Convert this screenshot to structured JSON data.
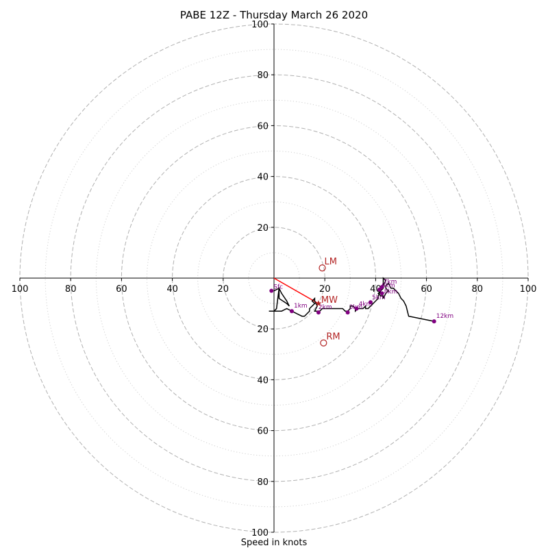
{
  "chart_data": {
    "type": "hodograph",
    "title": "PABE 12Z - Thursday March 26 2020",
    "xlabel": "Speed in knots",
    "range": [
      -100,
      100
    ],
    "ring_major": [
      20,
      40,
      60,
      80,
      100
    ],
    "ring_minor": [
      10,
      30,
      50,
      70,
      90
    ],
    "ticks": [
      20,
      40,
      60,
      80,
      100
    ],
    "ticks_left": [
      "100",
      "80",
      "60",
      "40",
      "20"
    ],
    "ticks_right": [
      "20",
      "40",
      "60",
      "80",
      "100"
    ],
    "ticks_up": [
      "20",
      "40",
      "60",
      "80",
      "100"
    ],
    "ticks_down": [
      "20",
      "40",
      "60",
      "80",
      "100"
    ],
    "hodograph": [
      [
        0,
        -5
      ],
      [
        2,
        -4
      ],
      [
        2,
        -8
      ],
      [
        5,
        -10
      ],
      [
        6,
        -11
      ],
      [
        5,
        -9
      ],
      [
        3,
        -6
      ],
      [
        2,
        -4
      ],
      [
        1,
        -12
      ],
      [
        0,
        -13
      ],
      [
        -2,
        -13
      ],
      [
        1,
        -13
      ],
      [
        3,
        -13
      ],
      [
        5,
        -12
      ],
      [
        7,
        -13
      ],
      [
        9,
        -14
      ],
      [
        11,
        -15
      ],
      [
        12,
        -15
      ],
      [
        13,
        -14
      ],
      [
        14,
        -13
      ],
      [
        14,
        -12
      ],
      [
        15,
        -11
      ],
      [
        16,
        -10
      ],
      [
        15,
        -9
      ],
      [
        16,
        -8
      ],
      [
        16,
        -9
      ],
      [
        17,
        -11
      ],
      [
        16,
        -13
      ],
      [
        17,
        -13
      ],
      [
        18,
        -13
      ],
      [
        19,
        -12
      ],
      [
        21,
        -12
      ],
      [
        23,
        -12
      ],
      [
        25,
        -12
      ],
      [
        27,
        -12
      ],
      [
        28,
        -13
      ],
      [
        29,
        -13
      ],
      [
        30,
        -12
      ],
      [
        30,
        -11
      ],
      [
        31,
        -11
      ],
      [
        32,
        -12
      ],
      [
        32,
        -13
      ],
      [
        33,
        -12
      ],
      [
        34,
        -12
      ],
      [
        35,
        -12
      ],
      [
        36,
        -11
      ],
      [
        36,
        -12
      ],
      [
        37,
        -12
      ],
      [
        38,
        -11
      ],
      [
        39,
        -10
      ],
      [
        40,
        -9
      ],
      [
        41,
        -8
      ],
      [
        41,
        -7
      ],
      [
        42,
        -5
      ],
      [
        42,
        -4
      ],
      [
        43,
        -3
      ],
      [
        44,
        -1
      ],
      [
        43,
        0
      ],
      [
        43,
        -2
      ],
      [
        43,
        -4
      ],
      [
        42,
        -5
      ],
      [
        41,
        -6
      ],
      [
        42,
        -7
      ],
      [
        43,
        -7
      ],
      [
        43,
        -8
      ],
      [
        44,
        -6
      ],
      [
        45,
        -5
      ],
      [
        44,
        -4
      ],
      [
        44,
        -3
      ],
      [
        45,
        -2
      ],
      [
        46,
        -4
      ],
      [
        47,
        -4
      ],
      [
        48,
        -5
      ],
      [
        49,
        -6
      ],
      [
        50,
        -8
      ],
      [
        51,
        -9
      ],
      [
        52,
        -11
      ],
      [
        53,
        -15
      ],
      [
        63,
        -17
      ]
    ],
    "height_points": [
      {
        "label": "Sfc",
        "u": -1,
        "v": -5,
        "dx": 3,
        "dy": -3
      },
      {
        "label": "1km",
        "u": 7,
        "v": -13,
        "dx": 3,
        "dy": -5
      },
      {
        "label": "2km",
        "u": 17.5,
        "v": -13.5,
        "dx": 0,
        "dy": -5
      },
      {
        "label": "3km",
        "u": 29,
        "v": -13.5,
        "dx": 2,
        "dy": -5
      },
      {
        "label": "4km",
        "u": 32.5,
        "v": -12,
        "dx": 3,
        "dy": -4
      },
      {
        "label": "5km",
        "u": 38,
        "v": -9.5,
        "dx": 2,
        "dy": -4
      },
      {
        "label": "6km",
        "u": 41.5,
        "v": -4.5,
        "dx": 3,
        "dy": -3
      },
      {
        "label": "7km",
        "u": 42.5,
        "v": -3.5,
        "dx": 2,
        "dy": -5
      },
      {
        "label": "8km",
        "u": 42.5,
        "v": -6,
        "dx": 3,
        "dy": 0
      },
      {
        "label": "12km",
        "u": 63,
        "v": -17,
        "dx": 3,
        "dy": -5
      }
    ],
    "storm_motions": [
      {
        "label": "LM",
        "u": 19,
        "v": 4,
        "marker": "circle",
        "dx": 3,
        "dy": -5
      },
      {
        "label": "RM",
        "u": 19.5,
        "v": -25.5,
        "marker": "circle",
        "dx": 4,
        "dy": -5
      },
      {
        "label": "MW",
        "u": 17.5,
        "v": -10,
        "marker": "star",
        "dx": 4,
        "dy": -1
      }
    ],
    "shear_vector": {
      "from": [
        0,
        0
      ],
      "to": [
        17.5,
        -10
      ]
    },
    "colors": {
      "hodograph": "#000000",
      "height_points": "#800080",
      "storm_motion": "#b22222",
      "shear_vector": "#ff0000",
      "rings": "#b0b0b0"
    },
    "grid": true
  }
}
